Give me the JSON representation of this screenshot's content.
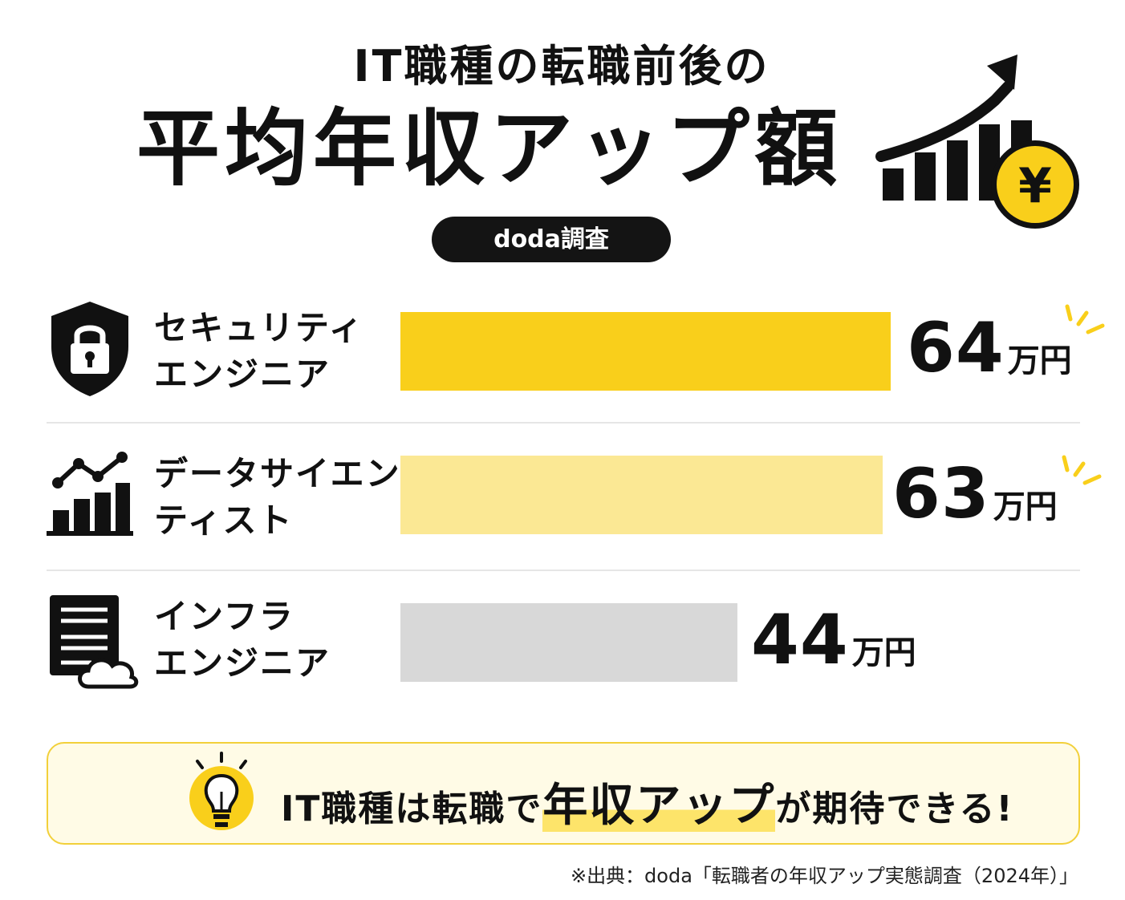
{
  "title": {
    "line1": "IT職種の転職前後の",
    "line2": "平均年収アップ額"
  },
  "badge": "doda調査",
  "chart_data": {
    "type": "bar",
    "orientation": "horizontal",
    "categories": [
      "セキュリティエンジニア",
      "データサイエンティスト",
      "インフラエンジニア"
    ],
    "values": [
      64,
      63,
      44
    ],
    "unit": "万円",
    "colors": [
      "#f9cf1b",
      "#fbe894",
      "#d8d8d8"
    ]
  },
  "rows": [
    {
      "label_line1": "セキュリティ",
      "label_line2": "エンジニア",
      "value": "64",
      "unit": "万円",
      "icon": "shield-lock-icon"
    },
    {
      "label_line1": "データサイエン",
      "label_line2": "ティスト",
      "value": "63",
      "unit": "万円",
      "icon": "analytics-chart-icon"
    },
    {
      "label_line1": "インフラ",
      "label_line2": "エンジニア",
      "value": "44",
      "unit": "万円",
      "icon": "server-cloud-icon"
    }
  ],
  "hero_icon": {
    "name": "growth-chart-yen-icon",
    "symbol": "¥",
    "accent": "#f9cf1b"
  },
  "callout": {
    "before": "IT職種は転職で",
    "highlight": "年収アップ",
    "after": "が期待できる!",
    "icon": "lightbulb-icon"
  },
  "source": "※出典：doda「転職者の年収アップ実態調査（2024年）」"
}
